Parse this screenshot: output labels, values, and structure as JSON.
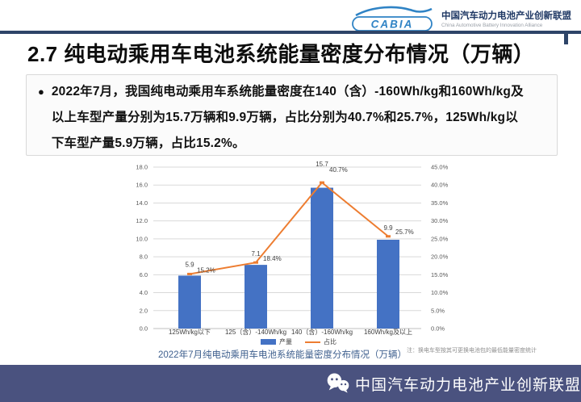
{
  "header": {
    "logo_text": "CABIA",
    "org_name_cn": "中国汽车动力电池产业创新联盟",
    "org_name_en": "China Automotive Battery Innovation Alliance"
  },
  "slide": {
    "title": "2.7 纯电动乘用车电池系统能量密度分布情况（万辆）",
    "bullet_glyph": "●",
    "bullet_lines": [
      "2022年7月，我国纯电动乘用车系统能量密度在140（含）-160Wh/kg和160Wh/kg及",
      "以上车型产量分别为15.7万辆和9.9万辆，占比分别为40.7%和25.7%，125Wh/kg以",
      "下车型产量5.9万辆，占比15.2%。"
    ]
  },
  "chart_data": {
    "type": "bar+line",
    "title": "2022年7月纯电动乘用车电池系统能量密度分布情况（万辆）",
    "note": "注：换电车型按其可更换电池包的最低能量密度统计",
    "categories": [
      "125Wh/kg以下",
      "125（含）-140Wh/kg",
      "140（含）-160Wh/kg",
      "160Wh/kg及以上"
    ],
    "series": [
      {
        "name": "产量",
        "type": "bar",
        "axis": "left",
        "color": "#4472C4",
        "values": [
          5.9,
          7.1,
          15.7,
          9.9
        ],
        "labels": [
          "5.9",
          "7.1",
          "15.7",
          "9.9"
        ]
      },
      {
        "name": "占比",
        "type": "line",
        "axis": "right",
        "color": "#ED7D31",
        "values": [
          15.2,
          18.4,
          40.7,
          25.7
        ],
        "labels": [
          "15.2%",
          "18.4%",
          "40.7%",
          "25.7%"
        ]
      }
    ],
    "left_axis": {
      "min": 0,
      "max": 18,
      "step": 2,
      "ticks": [
        "18.0",
        "16.0",
        "14.0",
        "12.0",
        "10.0",
        "8.0",
        "6.0",
        "4.0",
        "2.0",
        "0.0"
      ]
    },
    "right_axis": {
      "min": 0,
      "max": 45,
      "step": 5,
      "ticks": [
        "45.0%",
        "40.0%",
        "35.0%",
        "30.0%",
        "25.0%",
        "20.0%",
        "15.0%",
        "10.0%",
        "5.0%",
        "0.0%"
      ]
    },
    "legend": {
      "position": "bottom",
      "items": [
        "产量",
        "占比"
      ]
    },
    "grid": true,
    "colors": {
      "gridline": "#D9D9D9",
      "axis_text": "#595959"
    }
  },
  "footer": {
    "org_name": "中国汽车动力电池产业创新联盟"
  }
}
